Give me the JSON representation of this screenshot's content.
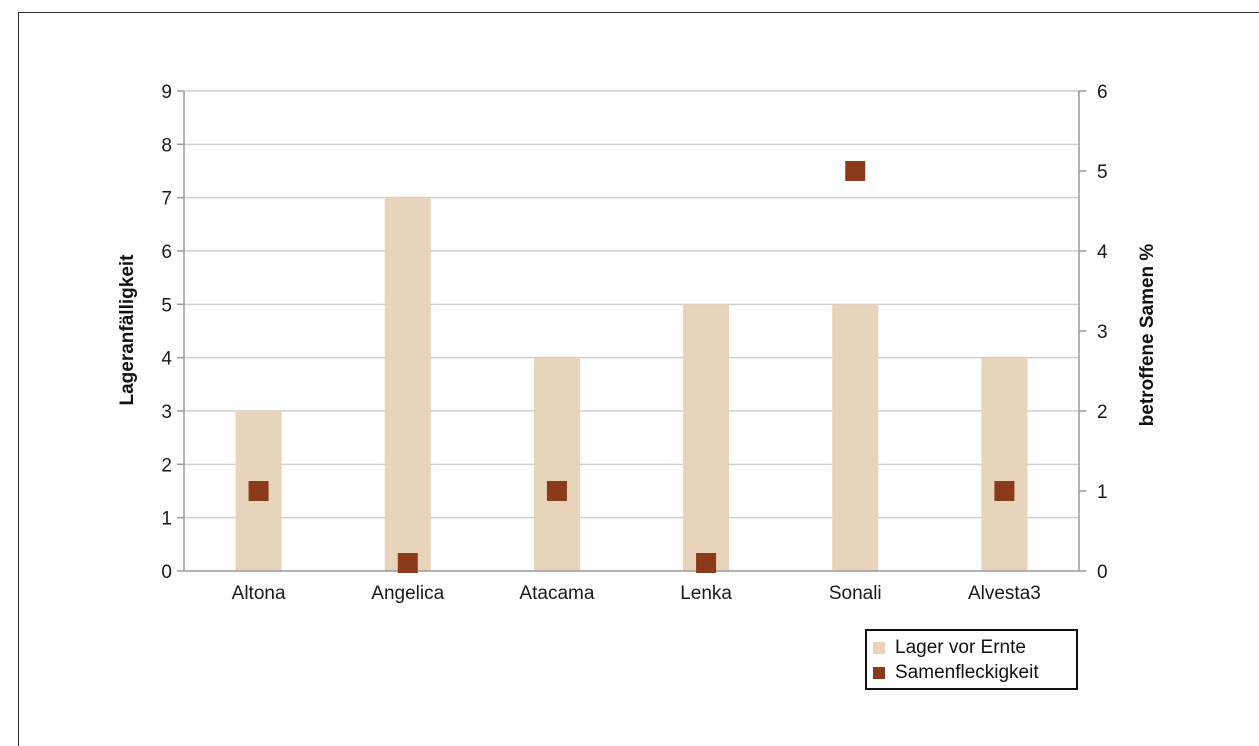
{
  "chart_data": {
    "type": "bar",
    "categories": [
      "Altona",
      "Angelica",
      "Atacama",
      "Lenka",
      "Sonali",
      "Alvesta3"
    ],
    "series": [
      {
        "name": "Lager vor Ernte",
        "kind": "bar",
        "axis": "left",
        "color": "#e8d3bb",
        "values": [
          3,
          7,
          4,
          5,
          5,
          4
        ]
      },
      {
        "name": "Samenfleckigkeit",
        "kind": "marker",
        "axis": "right",
        "color": "#8b3a1a",
        "values": [
          1,
          0.1,
          1,
          0.1,
          5,
          1
        ]
      }
    ],
    "ylabel": "Lageranfälligkeit",
    "y2label": "betroffene Samen %",
    "ylim": [
      0,
      9
    ],
    "y2lim": [
      0,
      6
    ],
    "yticks": [
      "0",
      "1",
      "2",
      "3",
      "4",
      "5",
      "6",
      "7",
      "8",
      "9"
    ],
    "y2ticks": [
      "0",
      "1",
      "2",
      "3",
      "4",
      "5",
      "6"
    ],
    "grid": true,
    "legend_position": "bottom-right"
  }
}
